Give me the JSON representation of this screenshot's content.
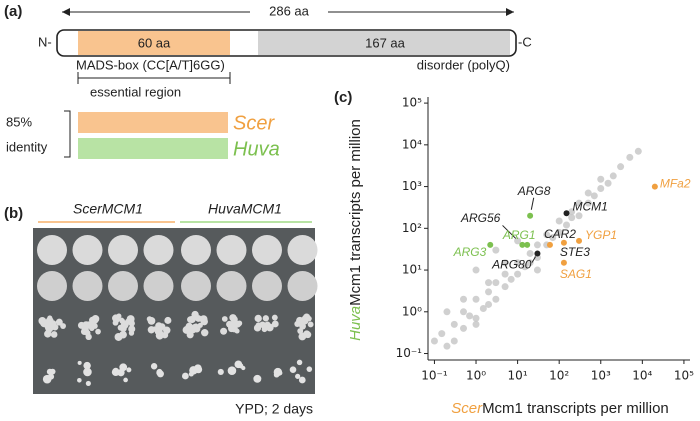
{
  "panel_a": {
    "label": "(a)",
    "length": "286 aa",
    "n_term": "N-",
    "c_term": "-C",
    "domain1": "60 aa",
    "domain2": "167 aa",
    "domain1_name": "MADS-box (CC[A/T]6GG)",
    "domain2_name": "disorder (polyQ)",
    "region": "essential region",
    "identity_value": "85%",
    "identity_word": "identity",
    "species1": "Scer",
    "species2": "Huva"
  },
  "panel_b": {
    "label": "(b)",
    "group1": "ScerMCM1",
    "group2": "HuvaMCM1",
    "condition": "YPD; 2 days"
  },
  "chart_data": {
    "type": "scatter",
    "label": "(c)",
    "ylabel_species": "Huva",
    "ylabel_rest": "Mcm1 transcripts per million",
    "xlabel_species": "Scer",
    "xlabel_rest": "Mcm1 transcripts per million",
    "xlog": true,
    "ylog": true,
    "xlim": [
      0.07,
      140000
    ],
    "ylim": [
      0.07,
      140000
    ],
    "xticks": [
      {
        "value": 0.1,
        "label": "10⁻¹"
      },
      {
        "value": 1,
        "label": "10⁰"
      },
      {
        "value": 10,
        "label": "10¹"
      },
      {
        "value": 100,
        "label": "10²"
      },
      {
        "value": 1000,
        "label": "10³"
      },
      {
        "value": 10000,
        "label": "10⁴"
      },
      {
        "value": 100000,
        "label": "10⁵"
      }
    ],
    "yticks": [
      {
        "value": 0.1,
        "label": "10⁻¹"
      },
      {
        "value": 1,
        "label": "10⁰"
      },
      {
        "value": 10,
        "label": "10¹"
      },
      {
        "value": 100,
        "label": "10²"
      },
      {
        "value": 1000,
        "label": "10³"
      },
      {
        "value": 10000,
        "label": "10⁴"
      },
      {
        "value": 100000,
        "label": "10⁵"
      }
    ],
    "series": [
      {
        "color": "#c4c4c4",
        "x": [
          0.1,
          0.15,
          0.2,
          0.3,
          0.3,
          0.5,
          0.5,
          0.7,
          1,
          1,
          1.5,
          2,
          2,
          3,
          3,
          5,
          5,
          7,
          10,
          10,
          15,
          20,
          20,
          30,
          30,
          50,
          50,
          70,
          100,
          100,
          150,
          200,
          200,
          300,
          300,
          500,
          500,
          700,
          1000,
          1000,
          1500,
          2000,
          3000,
          5000,
          0.2,
          0.5,
          1,
          2,
          5,
          8000,
          3,
          10,
          1,
          30
        ],
        "values": [
          0.2,
          0.3,
          0.15,
          0.5,
          0.2,
          0.4,
          1,
          0.8,
          2,
          0.7,
          1.2,
          3,
          1.5,
          2,
          5,
          4,
          8,
          6,
          8,
          15,
          12,
          25,
          15,
          20,
          40,
          40,
          70,
          60,
          80,
          150,
          120,
          250,
          180,
          200,
          400,
          400,
          700,
          600,
          900,
          1500,
          1200,
          1800,
          3000,
          5000,
          1,
          2,
          0.5,
          5,
          15,
          7000,
          30,
          50,
          10,
          10
        ]
      }
    ],
    "points": [
      {
        "label": "ARG3",
        "x": 2.2,
        "y": 40,
        "color": "#7cc04f",
        "label_color": "#7cc04f"
      },
      {
        "label": "ARG56",
        "x": 13,
        "y": 40,
        "color": "#7cc04f",
        "label_color": "#222222"
      },
      {
        "label": "ARG1",
        "x": 17,
        "y": 40,
        "color": "#7cc04f",
        "label_color": "#7cc04f"
      },
      {
        "label": "ARG8",
        "x": 20,
        "y": 200,
        "color": "#7cc04f",
        "label_color": "#222222"
      },
      {
        "label": "ARG80",
        "x": 30,
        "y": 25,
        "color": "#222222",
        "label_color": "#222222"
      },
      {
        "label": "CAR2",
        "x": 60,
        "y": 40,
        "color": "#f0a040",
        "label_color": "#222222"
      },
      {
        "label": "STE3",
        "x": 130,
        "y": 45,
        "color": "#f0a040",
        "label_color": "#222222"
      },
      {
        "label": "YGP1",
        "x": 300,
        "y": 50,
        "color": "#f0a040",
        "label_color": "#f0a040"
      },
      {
        "label": "SAG1",
        "x": 130,
        "y": 15,
        "color": "#f0a040",
        "label_color": "#f0a040"
      },
      {
        "label": "MCM1",
        "x": 150,
        "y": 230,
        "color": "#222222",
        "label_color": "#222222"
      },
      {
        "label": "MFa2",
        "x": 20000,
        "y": 1000,
        "color": "#f0a040",
        "label_color": "#f0a040"
      }
    ]
  }
}
